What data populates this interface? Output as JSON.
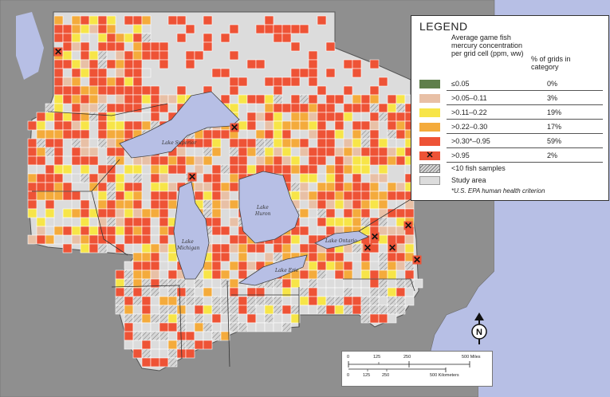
{
  "legend": {
    "title": "LEGEND",
    "col1_header": "Average game fish mercury concentration per grid cell (ppm, ww)",
    "col2_header": "% of grids in category",
    "rows": [
      {
        "label": "≤0.05",
        "pct": "0%",
        "color": "#5f7f4b",
        "marker": "swatch"
      },
      {
        "label": ">0.05–0.11",
        "pct": "3%",
        "color": "#e8c0a6",
        "marker": "swatch"
      },
      {
        "label": ">0.11–0.22",
        "pct": "19%",
        "color": "#f7e548",
        "marker": "swatch"
      },
      {
        "label": ">0.22–0.30",
        "pct": "17%",
        "color": "#f4ab3c",
        "marker": "swatch"
      },
      {
        "label": ">0.30*–0.95",
        "pct": "59%",
        "color": "#ee5336",
        "marker": "swatch"
      },
      {
        "label": ">0.95",
        "pct": "2%",
        "color": "#ee5336",
        "marker": "x"
      },
      {
        "label": "<10 fish samples",
        "pct": "",
        "color": "#d9d9d9",
        "marker": "hatch"
      },
      {
        "label": "Study area",
        "pct": "",
        "color": "#dcdcdc",
        "marker": "swatch"
      }
    ],
    "footnote": "*U.S. EPA human health criterion"
  },
  "lakes": {
    "superior": "Lake Superior",
    "michigan": "Lake Michigan",
    "huron": "Lake Huron",
    "erie": "Lake Erie",
    "ontario": "Lake Ontario"
  },
  "scale": {
    "miles_ticks": [
      "0",
      "125",
      "250",
      "500 Miles"
    ],
    "km_ticks": [
      "0",
      "125",
      "250",
      "500 Kilometers"
    ]
  },
  "north_label": "N",
  "colors": {
    "water": "#b7bfe5",
    "land_outside": "#8f8f8f",
    "study_area": "#dcdcdc",
    "red": "#ee5336",
    "orange": "#f4ab3c",
    "yellow": "#f7e548",
    "peach": "#e8c0a6"
  }
}
